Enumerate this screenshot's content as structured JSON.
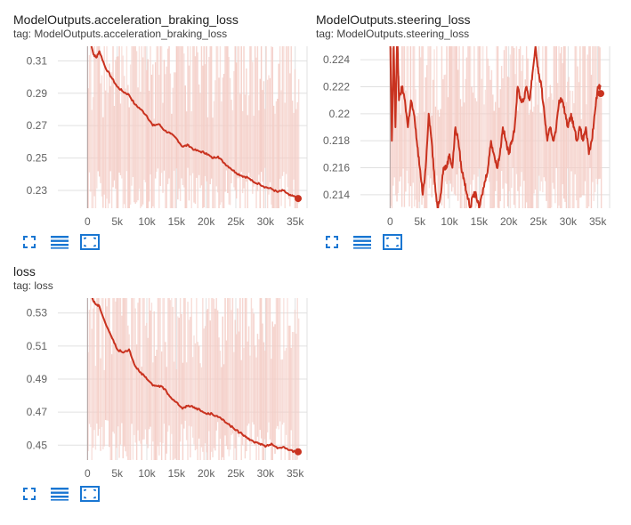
{
  "theme": {
    "line_color": "#c9321f",
    "band_color": "#f4cdc6",
    "grid_color": "#e0e0e0",
    "icon_color": "#1976d2"
  },
  "toolbar": {
    "icons": [
      "fullscreen-icon",
      "lines-icon",
      "fit-domain-icon"
    ]
  },
  "cards": [
    {
      "title": "ModelOutputs.acceleration_braking_loss",
      "tag": "tag: ModelOutputs.acceleration_braking_loss"
    },
    {
      "title": "ModelOutputs.steering_loss",
      "tag": "tag: ModelOutputs.steering_loss"
    },
    {
      "title": "loss",
      "tag": "tag: loss"
    }
  ],
  "chart_data": [
    {
      "type": "line",
      "title": "ModelOutputs.acceleration_braking_loss",
      "xlim": [
        -5000,
        37000
      ],
      "ylim": [
        0.219,
        0.319
      ],
      "xticks": [
        0,
        5000,
        10000,
        15000,
        20000,
        25000,
        30000,
        35000
      ],
      "xtick_labels": [
        "0",
        "5k",
        "10k",
        "15k",
        "20k",
        "25k",
        "30k",
        "35k"
      ],
      "yticks": [
        0.23,
        0.25,
        0.27,
        0.29,
        0.31
      ],
      "ytick_labels": [
        "0.23",
        "0.25",
        "0.27",
        "0.29",
        "0.31"
      ],
      "grid": true,
      "band_ylim_outside": true,
      "series": [
        {
          "x": [
            0,
            1000,
            1500,
            2000,
            3000,
            4000,
            5000,
            6000,
            7000,
            8000,
            9000,
            10000,
            11000,
            12000,
            13000,
            14000,
            15000,
            16000,
            17000,
            18000,
            19000,
            20000,
            21000,
            22000,
            23000,
            24000,
            25000,
            26000,
            27000,
            28000,
            29000,
            30000,
            31000,
            32000,
            33000,
            34000,
            35000,
            35500
          ],
          "y": [
            0.33,
            0.314,
            0.312,
            0.316,
            0.306,
            0.3,
            0.294,
            0.291,
            0.289,
            0.283,
            0.28,
            0.276,
            0.27,
            0.271,
            0.267,
            0.265,
            0.262,
            0.257,
            0.258,
            0.255,
            0.254,
            0.253,
            0.25,
            0.251,
            0.247,
            0.244,
            0.241,
            0.239,
            0.238,
            0.235,
            0.234,
            0.232,
            0.231,
            0.229,
            0.23,
            0.227,
            0.226,
            0.225
          ],
          "last_value": 0.225
        }
      ]
    },
    {
      "type": "line",
      "title": "ModelOutputs.steering_loss",
      "xlim": [
        -5000,
        37000
      ],
      "ylim": [
        0.213,
        0.225
      ],
      "xticks": [
        0,
        5000,
        10000,
        15000,
        20000,
        25000,
        30000,
        35000
      ],
      "xtick_labels": [
        "0",
        "5k",
        "10k",
        "15k",
        "20k",
        "25k",
        "30k",
        "35k"
      ],
      "yticks": [
        0.214,
        0.216,
        0.218,
        0.22,
        0.222,
        0.224
      ],
      "ytick_labels": [
        "0.214",
        "0.216",
        "0.218",
        "0.22",
        "0.222",
        "0.224"
      ],
      "grid": true,
      "series": [
        {
          "x": [
            0,
            300,
            600,
            900,
            1200,
            1500,
            2000,
            2500,
            3000,
            3500,
            4000,
            4500,
            5000,
            5500,
            6000,
            6500,
            7000,
            7500,
            8000,
            8500,
            9000,
            9500,
            10000,
            10500,
            11000,
            11500,
            12000,
            12500,
            13000,
            13500,
            14000,
            14500,
            15000,
            15500,
            16000,
            16500,
            17000,
            17500,
            18000,
            18500,
            19000,
            19500,
            20000,
            20500,
            21000,
            21500,
            22000,
            22500,
            23000,
            23500,
            24000,
            24500,
            25000,
            25500,
            26000,
            26500,
            27000,
            27500,
            28000,
            28500,
            29000,
            29500,
            30000,
            30500,
            31000,
            31500,
            32000,
            32500,
            33000,
            33500,
            34000,
            34500,
            35000,
            35500
          ],
          "y": [
            0.226,
            0.218,
            0.225,
            0.219,
            0.226,
            0.221,
            0.222,
            0.221,
            0.219,
            0.221,
            0.22,
            0.218,
            0.216,
            0.214,
            0.216,
            0.22,
            0.218,
            0.215,
            0.213,
            0.214,
            0.216,
            0.216,
            0.217,
            0.216,
            0.219,
            0.218,
            0.216,
            0.215,
            0.214,
            0.213,
            0.214,
            0.214,
            0.213,
            0.214,
            0.215,
            0.216,
            0.218,
            0.217,
            0.216,
            0.217,
            0.219,
            0.218,
            0.217,
            0.218,
            0.219,
            0.222,
            0.221,
            0.221,
            0.222,
            0.221,
            0.223,
            0.225,
            0.223,
            0.222,
            0.22,
            0.218,
            0.219,
            0.218,
            0.219,
            0.221,
            0.221,
            0.22,
            0.219,
            0.22,
            0.219,
            0.218,
            0.219,
            0.218,
            0.219,
            0.217,
            0.218,
            0.22,
            0.222,
            0.222
          ],
          "last_value": 0.2215
        }
      ]
    },
    {
      "type": "line",
      "title": "loss",
      "xlim": [
        -5000,
        37000
      ],
      "ylim": [
        0.441,
        0.539
      ],
      "xticks": [
        0,
        5000,
        10000,
        15000,
        20000,
        25000,
        30000,
        35000
      ],
      "xtick_labels": [
        "0",
        "5k",
        "10k",
        "15k",
        "20k",
        "25k",
        "30k",
        "35k"
      ],
      "yticks": [
        0.45,
        0.47,
        0.49,
        0.51,
        0.53
      ],
      "ytick_labels": [
        "0.45",
        "0.47",
        "0.49",
        "0.51",
        "0.53"
      ],
      "grid": true,
      "series": [
        {
          "x": [
            0,
            1000,
            1500,
            2000,
            3000,
            4000,
            5000,
            6000,
            7000,
            8000,
            9000,
            10000,
            11000,
            12000,
            13000,
            14000,
            15000,
            16000,
            17000,
            18000,
            19000,
            20000,
            21000,
            22000,
            23000,
            24000,
            25000,
            26000,
            27000,
            28000,
            29000,
            30000,
            31000,
            32000,
            33000,
            34000,
            35000,
            35500
          ],
          "y": [
            0.55,
            0.537,
            0.535,
            0.534,
            0.524,
            0.516,
            0.508,
            0.506,
            0.508,
            0.498,
            0.494,
            0.49,
            0.486,
            0.486,
            0.484,
            0.479,
            0.476,
            0.472,
            0.474,
            0.473,
            0.471,
            0.469,
            0.469,
            0.467,
            0.465,
            0.462,
            0.459,
            0.457,
            0.454,
            0.452,
            0.451,
            0.449,
            0.451,
            0.448,
            0.449,
            0.447,
            0.446,
            0.446
          ],
          "last_value": 0.446
        }
      ]
    }
  ]
}
